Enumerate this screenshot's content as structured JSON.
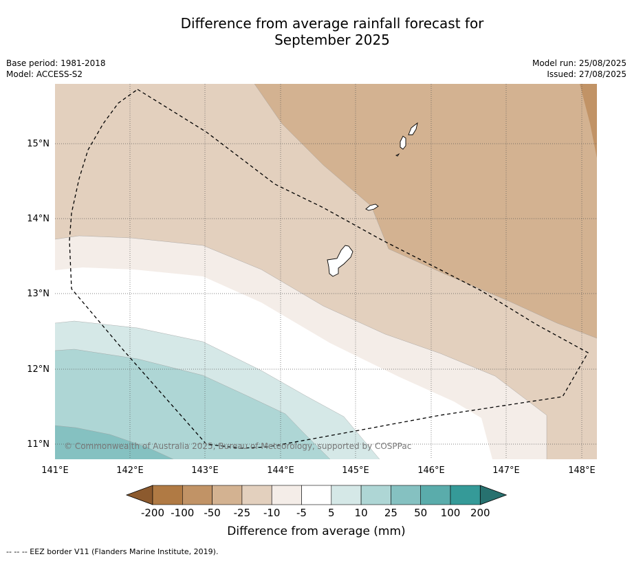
{
  "title_line1": "Difference from average rainfall forecast for",
  "title_line2": "September 2025",
  "meta_left": [
    "Base period: 1981-2018",
    "Model: ACCESS-S2"
  ],
  "meta_right": [
    "Model run: 25/08/2025",
    "Issued: 27/08/2025"
  ],
  "map": {
    "lat_labels": [
      "15°N",
      "14°N",
      "13°N",
      "12°N",
      "11°N"
    ],
    "lon_labels": [
      "141°E",
      "142°E",
      "143°E",
      "144°E",
      "145°E",
      "146°E",
      "147°E",
      "148°E"
    ],
    "copyright": "© Commonwealth of Australia 2025, Bureau of Meteorology, supported by COSPPac"
  },
  "legend": {
    "ticks": [
      "-200",
      "-100",
      "-50",
      "-25",
      "-10",
      "-5",
      "5",
      "10",
      "25",
      "50",
      "100",
      "200"
    ],
    "colors": [
      "#8c5a2e",
      "#b07a44",
      "#c19366",
      "#d3b291",
      "#e3d0be",
      "#f4ede8",
      "#ffffff",
      "#d5e8e7",
      "#aed6d5",
      "#85c1c1",
      "#5aacab",
      "#359a98",
      "#27716f"
    ],
    "label": "Difference from average (mm)"
  },
  "footer": "--  --  -- EEZ border V11 (Flanders Marine Institute, 2019)."
}
